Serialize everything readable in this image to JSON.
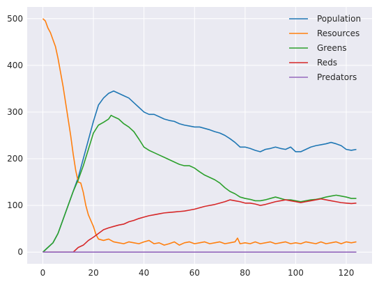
{
  "chart_data": {
    "type": "line",
    "title": "",
    "xlabel": "",
    "ylabel": "",
    "xlim": [
      -6.2,
      130.2
    ],
    "ylim": [
      -25,
      525
    ],
    "x_ticks": [
      0,
      20,
      40,
      60,
      80,
      100,
      120
    ],
    "y_ticks": [
      0,
      100,
      200,
      300,
      400,
      500
    ],
    "grid": true,
    "legend_position": "top-right",
    "series": [
      {
        "name": "Population",
        "color": "#1f77b4",
        "points": [
          [
            0,
            0
          ],
          [
            2,
            10
          ],
          [
            4,
            20
          ],
          [
            6,
            40
          ],
          [
            8,
            70
          ],
          [
            10,
            100
          ],
          [
            12,
            130
          ],
          [
            14,
            160
          ],
          [
            16,
            200
          ],
          [
            18,
            240
          ],
          [
            20,
            280
          ],
          [
            22,
            315
          ],
          [
            24,
            330
          ],
          [
            26,
            340
          ],
          [
            28,
            345
          ],
          [
            30,
            340
          ],
          [
            32,
            335
          ],
          [
            34,
            330
          ],
          [
            36,
            320
          ],
          [
            38,
            310
          ],
          [
            40,
            300
          ],
          [
            42,
            295
          ],
          [
            44,
            295
          ],
          [
            46,
            290
          ],
          [
            48,
            285
          ],
          [
            50,
            282
          ],
          [
            52,
            280
          ],
          [
            54,
            275
          ],
          [
            56,
            272
          ],
          [
            58,
            270
          ],
          [
            60,
            268
          ],
          [
            62,
            268
          ],
          [
            64,
            265
          ],
          [
            66,
            262
          ],
          [
            68,
            258
          ],
          [
            70,
            255
          ],
          [
            72,
            250
          ],
          [
            74,
            243
          ],
          [
            76,
            235
          ],
          [
            78,
            225
          ],
          [
            80,
            225
          ],
          [
            82,
            222
          ],
          [
            84,
            218
          ],
          [
            86,
            215
          ],
          [
            88,
            220
          ],
          [
            90,
            222
          ],
          [
            92,
            225
          ],
          [
            94,
            222
          ],
          [
            96,
            220
          ],
          [
            98,
            225
          ],
          [
            100,
            215
          ],
          [
            102,
            215
          ],
          [
            104,
            220
          ],
          [
            106,
            225
          ],
          [
            108,
            228
          ],
          [
            110,
            230
          ],
          [
            112,
            232
          ],
          [
            114,
            235
          ],
          [
            116,
            232
          ],
          [
            118,
            228
          ],
          [
            120,
            220
          ],
          [
            122,
            218
          ],
          [
            124,
            220
          ]
        ]
      },
      {
        "name": "Resources",
        "color": "#ff7f0e",
        "points": [
          [
            0,
            500
          ],
          [
            1,
            495
          ],
          [
            2,
            480
          ],
          [
            3,
            470
          ],
          [
            4,
            455
          ],
          [
            5,
            440
          ],
          [
            6,
            415
          ],
          [
            7,
            385
          ],
          [
            8,
            355
          ],
          [
            9,
            320
          ],
          [
            10,
            285
          ],
          [
            11,
            250
          ],
          [
            12,
            210
          ],
          [
            13,
            175
          ],
          [
            14,
            150
          ],
          [
            15,
            148
          ],
          [
            16,
            128
          ],
          [
            17,
            100
          ],
          [
            18,
            80
          ],
          [
            20,
            55
          ],
          [
            21,
            38
          ],
          [
            22,
            28
          ],
          [
            24,
            25
          ],
          [
            26,
            28
          ],
          [
            28,
            22
          ],
          [
            30,
            20
          ],
          [
            32,
            18
          ],
          [
            34,
            22
          ],
          [
            36,
            20
          ],
          [
            38,
            18
          ],
          [
            40,
            22
          ],
          [
            42,
            25
          ],
          [
            44,
            18
          ],
          [
            46,
            20
          ],
          [
            48,
            15
          ],
          [
            50,
            18
          ],
          [
            52,
            22
          ],
          [
            54,
            15
          ],
          [
            56,
            20
          ],
          [
            58,
            22
          ],
          [
            60,
            18
          ],
          [
            62,
            20
          ],
          [
            64,
            22
          ],
          [
            66,
            18
          ],
          [
            68,
            20
          ],
          [
            70,
            22
          ],
          [
            72,
            18
          ],
          [
            74,
            20
          ],
          [
            76,
            22
          ],
          [
            77,
            30
          ],
          [
            78,
            18
          ],
          [
            80,
            20
          ],
          [
            82,
            18
          ],
          [
            84,
            22
          ],
          [
            86,
            18
          ],
          [
            88,
            20
          ],
          [
            90,
            22
          ],
          [
            92,
            18
          ],
          [
            94,
            20
          ],
          [
            96,
            22
          ],
          [
            98,
            18
          ],
          [
            100,
            20
          ],
          [
            102,
            18
          ],
          [
            104,
            22
          ],
          [
            106,
            20
          ],
          [
            108,
            18
          ],
          [
            110,
            22
          ],
          [
            112,
            18
          ],
          [
            114,
            20
          ],
          [
            116,
            22
          ],
          [
            118,
            18
          ],
          [
            120,
            22
          ],
          [
            122,
            20
          ],
          [
            124,
            22
          ]
        ]
      },
      {
        "name": "Greens",
        "color": "#2ca02c",
        "points": [
          [
            0,
            0
          ],
          [
            2,
            10
          ],
          [
            4,
            20
          ],
          [
            6,
            40
          ],
          [
            8,
            70
          ],
          [
            10,
            100
          ],
          [
            12,
            130
          ],
          [
            14,
            155
          ],
          [
            16,
            185
          ],
          [
            18,
            220
          ],
          [
            20,
            255
          ],
          [
            22,
            272
          ],
          [
            24,
            278
          ],
          [
            26,
            285
          ],
          [
            27,
            293
          ],
          [
            28,
            290
          ],
          [
            30,
            285
          ],
          [
            32,
            275
          ],
          [
            34,
            268
          ],
          [
            36,
            258
          ],
          [
            38,
            242
          ],
          [
            40,
            225
          ],
          [
            42,
            218
          ],
          [
            44,
            213
          ],
          [
            46,
            208
          ],
          [
            48,
            203
          ],
          [
            50,
            198
          ],
          [
            52,
            193
          ],
          [
            54,
            188
          ],
          [
            56,
            185
          ],
          [
            58,
            185
          ],
          [
            60,
            180
          ],
          [
            62,
            172
          ],
          [
            64,
            165
          ],
          [
            66,
            160
          ],
          [
            68,
            155
          ],
          [
            70,
            148
          ],
          [
            72,
            138
          ],
          [
            74,
            130
          ],
          [
            76,
            125
          ],
          [
            78,
            118
          ],
          [
            80,
            115
          ],
          [
            82,
            113
          ],
          [
            84,
            110
          ],
          [
            86,
            110
          ],
          [
            88,
            112
          ],
          [
            90,
            115
          ],
          [
            92,
            118
          ],
          [
            94,
            115
          ],
          [
            96,
            112
          ],
          [
            98,
            112
          ],
          [
            100,
            110
          ],
          [
            102,
            108
          ],
          [
            104,
            110
          ],
          [
            106,
            112
          ],
          [
            108,
            113
          ],
          [
            110,
            115
          ],
          [
            112,
            118
          ],
          [
            114,
            120
          ],
          [
            116,
            122
          ],
          [
            118,
            120
          ],
          [
            120,
            118
          ],
          [
            122,
            115
          ],
          [
            124,
            115
          ]
        ]
      },
      {
        "name": "Reds",
        "color": "#d62728",
        "points": [
          [
            0,
            0
          ],
          [
            2,
            0
          ],
          [
            4,
            0
          ],
          [
            6,
            0
          ],
          [
            8,
            0
          ],
          [
            10,
            0
          ],
          [
            12,
            0
          ],
          [
            13,
            5
          ],
          [
            14,
            10
          ],
          [
            16,
            15
          ],
          [
            18,
            25
          ],
          [
            20,
            32
          ],
          [
            22,
            40
          ],
          [
            24,
            48
          ],
          [
            26,
            52
          ],
          [
            28,
            55
          ],
          [
            30,
            58
          ],
          [
            32,
            60
          ],
          [
            34,
            65
          ],
          [
            36,
            68
          ],
          [
            38,
            72
          ],
          [
            40,
            75
          ],
          [
            42,
            78
          ],
          [
            44,
            80
          ],
          [
            46,
            82
          ],
          [
            48,
            84
          ],
          [
            50,
            85
          ],
          [
            52,
            86
          ],
          [
            54,
            87
          ],
          [
            56,
            88
          ],
          [
            58,
            90
          ],
          [
            60,
            92
          ],
          [
            62,
            95
          ],
          [
            64,
            98
          ],
          [
            66,
            100
          ],
          [
            68,
            102
          ],
          [
            70,
            105
          ],
          [
            72,
            108
          ],
          [
            74,
            112
          ],
          [
            76,
            110
          ],
          [
            78,
            108
          ],
          [
            80,
            105
          ],
          [
            82,
            105
          ],
          [
            84,
            103
          ],
          [
            86,
            100
          ],
          [
            88,
            102
          ],
          [
            90,
            105
          ],
          [
            92,
            108
          ],
          [
            94,
            110
          ],
          [
            96,
            112
          ],
          [
            98,
            110
          ],
          [
            100,
            108
          ],
          [
            102,
            106
          ],
          [
            104,
            108
          ],
          [
            106,
            110
          ],
          [
            108,
            112
          ],
          [
            110,
            114
          ],
          [
            112,
            112
          ],
          [
            114,
            110
          ],
          [
            116,
            108
          ],
          [
            118,
            106
          ],
          [
            120,
            105
          ],
          [
            122,
            104
          ],
          [
            124,
            105
          ]
        ]
      },
      {
        "name": "Predators",
        "color": "#9467bd",
        "points": [
          [
            0,
            0
          ],
          [
            124,
            0
          ]
        ]
      }
    ]
  }
}
